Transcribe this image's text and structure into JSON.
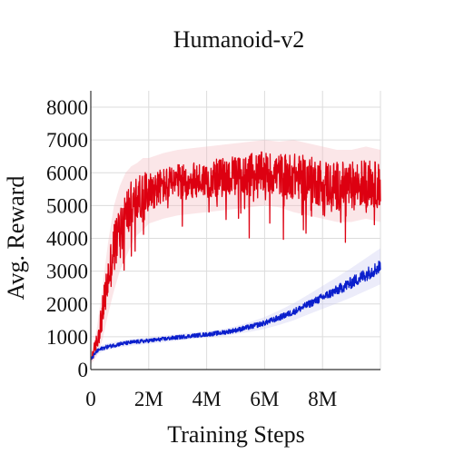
{
  "chart_data": {
    "type": "line",
    "title": "Humanoid-v2",
    "xlabel": "Training Steps",
    "ylabel": "Avg. Reward",
    "xlim": [
      0,
      10000000
    ],
    "ylim": [
      0,
      8500
    ],
    "x_ticks": [
      0,
      2000000,
      4000000,
      6000000,
      8000000
    ],
    "x_tick_labels": [
      "0",
      "2M",
      "4M",
      "6M",
      "8M"
    ],
    "y_ticks": [
      0,
      1000,
      2000,
      3000,
      4000,
      5000,
      6000,
      7000,
      8000
    ],
    "y_tick_labels": [
      "0",
      "1000",
      "2000",
      "3000",
      "4000",
      "5000",
      "6000",
      "7000",
      "8000"
    ],
    "grid": true,
    "legend": "none",
    "series": [
      {
        "color": "#dd0011",
        "band_color": "#f4b7bd",
        "x": [
          0,
          200000,
          400000,
          600000,
          800000,
          1000000,
          1200000,
          1400000,
          1600000,
          1800000,
          2000000,
          2500000,
          3000000,
          3500000,
          4000000,
          4500000,
          5000000,
          5500000,
          6000000,
          6500000,
          7000000,
          7500000,
          8000000,
          8500000,
          9000000,
          9500000,
          10000000
        ],
        "y": [
          300,
          800,
          1700,
          2800,
          3700,
          4300,
          4700,
          5000,
          5200,
          5350,
          5450,
          5600,
          5700,
          5750,
          5800,
          5850,
          5900,
          5950,
          6000,
          5950,
          5900,
          5800,
          5700,
          5600,
          5600,
          5700,
          5600
        ],
        "spread": [
          100,
          300,
          500,
          700,
          800,
          800,
          800,
          750,
          700,
          650,
          600,
          550,
          550,
          550,
          550,
          600,
          600,
          650,
          650,
          650,
          700,
          700,
          750,
          750,
          750,
          750,
          700
        ],
        "band": [
          150,
          400,
          800,
          1100,
          1300,
          1300,
          1300,
          1200,
          1100,
          1100,
          1000,
          1000,
          1000,
          1000,
          1000,
          1000,
          1000,
          1000,
          1000,
          1000,
          1100,
          1100,
          1100,
          1100,
          1100,
          1100,
          1100
        ]
      },
      {
        "color": "#0a1ecc",
        "band_color": "#c9c9f2",
        "x": [
          0,
          200000,
          400000,
          600000,
          800000,
          1000000,
          1500000,
          2000000,
          2500000,
          3000000,
          3500000,
          4000000,
          4500000,
          5000000,
          5500000,
          6000000,
          6500000,
          7000000,
          7500000,
          8000000,
          8500000,
          9000000,
          9500000,
          10000000
        ],
        "y": [
          300,
          550,
          650,
          700,
          740,
          780,
          840,
          880,
          930,
          980,
          1030,
          1070,
          1120,
          1200,
          1300,
          1420,
          1580,
          1760,
          1980,
          2200,
          2420,
          2650,
          2900,
          3150
        ],
        "spread": [
          50,
          60,
          60,
          60,
          60,
          60,
          60,
          60,
          60,
          60,
          60,
          60,
          70,
          70,
          80,
          80,
          90,
          100,
          110,
          130,
          150,
          180,
          200,
          220
        ],
        "band": [
          80,
          100,
          100,
          100,
          100,
          100,
          100,
          100,
          100,
          100,
          100,
          100,
          100,
          120,
          150,
          180,
          220,
          260,
          300,
          350,
          400,
          450,
          500,
          550
        ]
      }
    ]
  }
}
